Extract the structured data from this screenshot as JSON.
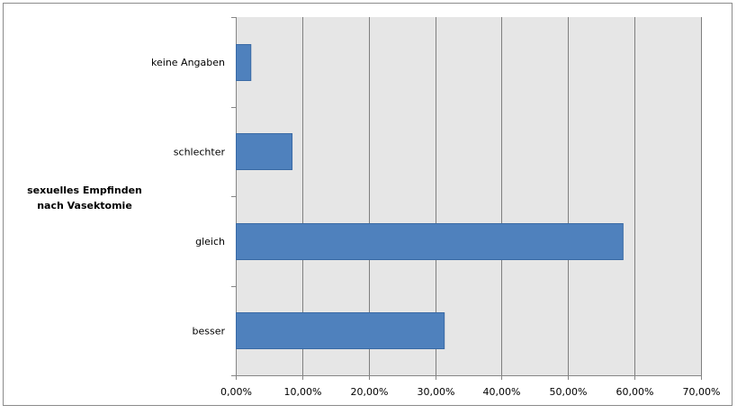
{
  "chart_data": {
    "type": "bar",
    "orientation": "horizontal",
    "categories": [
      "keine Angaben",
      "schlechter",
      "gleich",
      "besser"
    ],
    "values": [
      2.2,
      8.4,
      58.2,
      31.3
    ],
    "ylabel": "sexuelles Empfinden nach Vasektomie",
    "xlabel": "",
    "title": "",
    "xlim": [
      0,
      70
    ],
    "xticks": [
      "0,00%",
      "10,00%",
      "20,00%",
      "30,00%",
      "40,00%",
      "50,00%",
      "60,00%",
      "70,00%"
    ],
    "grid": true,
    "colors": {
      "bar": "#4f81bd",
      "bar_border": "#3a6aa5",
      "plot_background": "#e6e6e6",
      "grid": "#7f7f7f",
      "axis": "#868686"
    }
  }
}
